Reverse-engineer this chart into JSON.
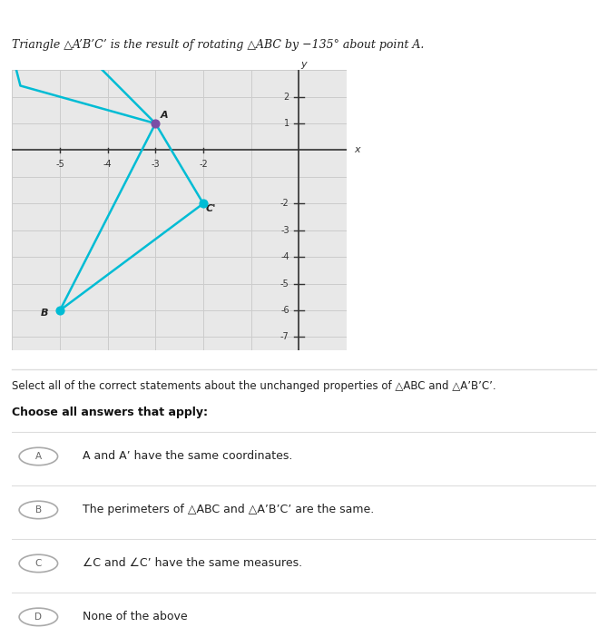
{
  "title": "Triangle △A’B’C’ is the result of rotating △ABC by −135° about point A.",
  "graph_bg": "#f0f0f0",
  "panel_bg": "#ffffff",
  "grid_color": "#cccccc",
  "axis_color": "#333333",
  "triangle_color": "#00bcd4",
  "point_A_color": "#7b4fa6",
  "point_BC_color": "#00bcd4",
  "A": [
    -3,
    1
  ],
  "B": [
    -5,
    -6
  ],
  "C": [
    -2,
    -2
  ],
  "xlim": [
    -6,
    1
  ],
  "ylim": [
    -7.5,
    3
  ],
  "xticks": [
    -5,
    -4,
    -3,
    -2
  ],
  "yticks": [
    -7,
    -6,
    -5,
    -4,
    -3,
    -2,
    1,
    2
  ],
  "xlabel": "x",
  "ylabel": "y",
  "select_text": "Select all of the correct statements about the unchanged properties of △ABC and △A’B’C’.",
  "choose_text": "Choose all answers that apply:",
  "options": [
    {
      "label": "A",
      "text": "A and A’ have the same coordinates."
    },
    {
      "label": "B",
      "text": "The perimeters of △ABC and △A’B’C’ are the same."
    },
    {
      "label": "C",
      "text": "∠C and ∠C’ have the same measures."
    },
    {
      "label": "D",
      "text": "None of the above"
    }
  ],
  "rotation_deg": -135,
  "separator_color": "#dddddd",
  "label_fontsize": 8,
  "tick_fontsize": 7,
  "option_fontsize": 9,
  "title_fontsize": 9
}
